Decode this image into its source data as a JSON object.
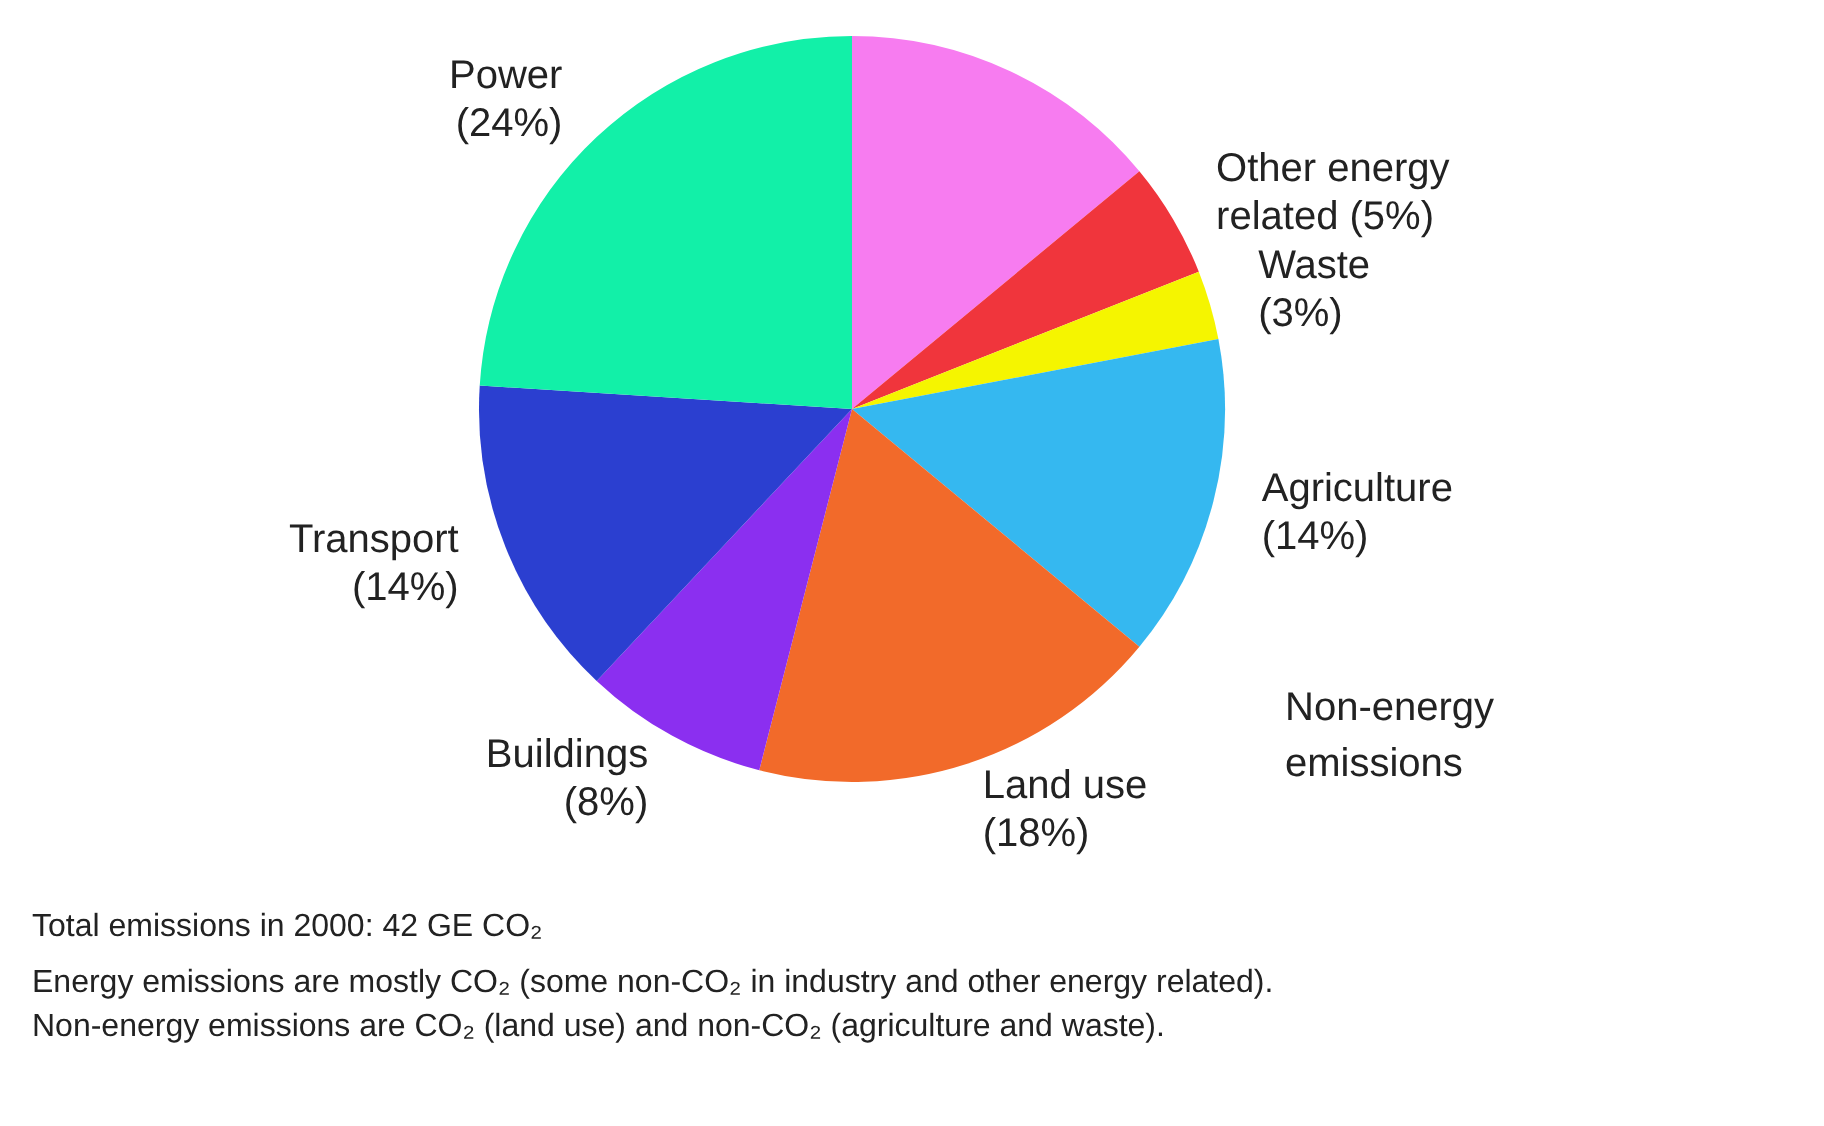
{
  "chart_data": {
    "type": "pie",
    "categories": [
      null,
      "Other energy related",
      "Waste",
      "Agriculture",
      "Land use",
      "Buildings",
      "Transport",
      "Power"
    ],
    "values": [
      14,
      5,
      3,
      14,
      18,
      8,
      14,
      24
    ],
    "value_labels": [
      null,
      "(5%)",
      "(3%)",
      "(14%)",
      "(18%)",
      "(8%)",
      "(14%)",
      "(24%)"
    ],
    "colors": [
      "#f77cf0",
      "#f0353c",
      "#f5f500",
      "#35b8f0",
      "#f26a2a",
      "#8b2ff0",
      "#2b3fd0",
      "#12f0a8"
    ],
    "annotations": [
      "Non-energy emissions",
      "Total emissions in 2000: 42 GE CO₂",
      "Energy emissions are mostly CO₂ (some non-CO₂ in industry and other energy related).",
      "Non-energy emissions are CO₂ (land use) and non-CO₂ (agriculture and waste)."
    ],
    "legend": false
  }
}
